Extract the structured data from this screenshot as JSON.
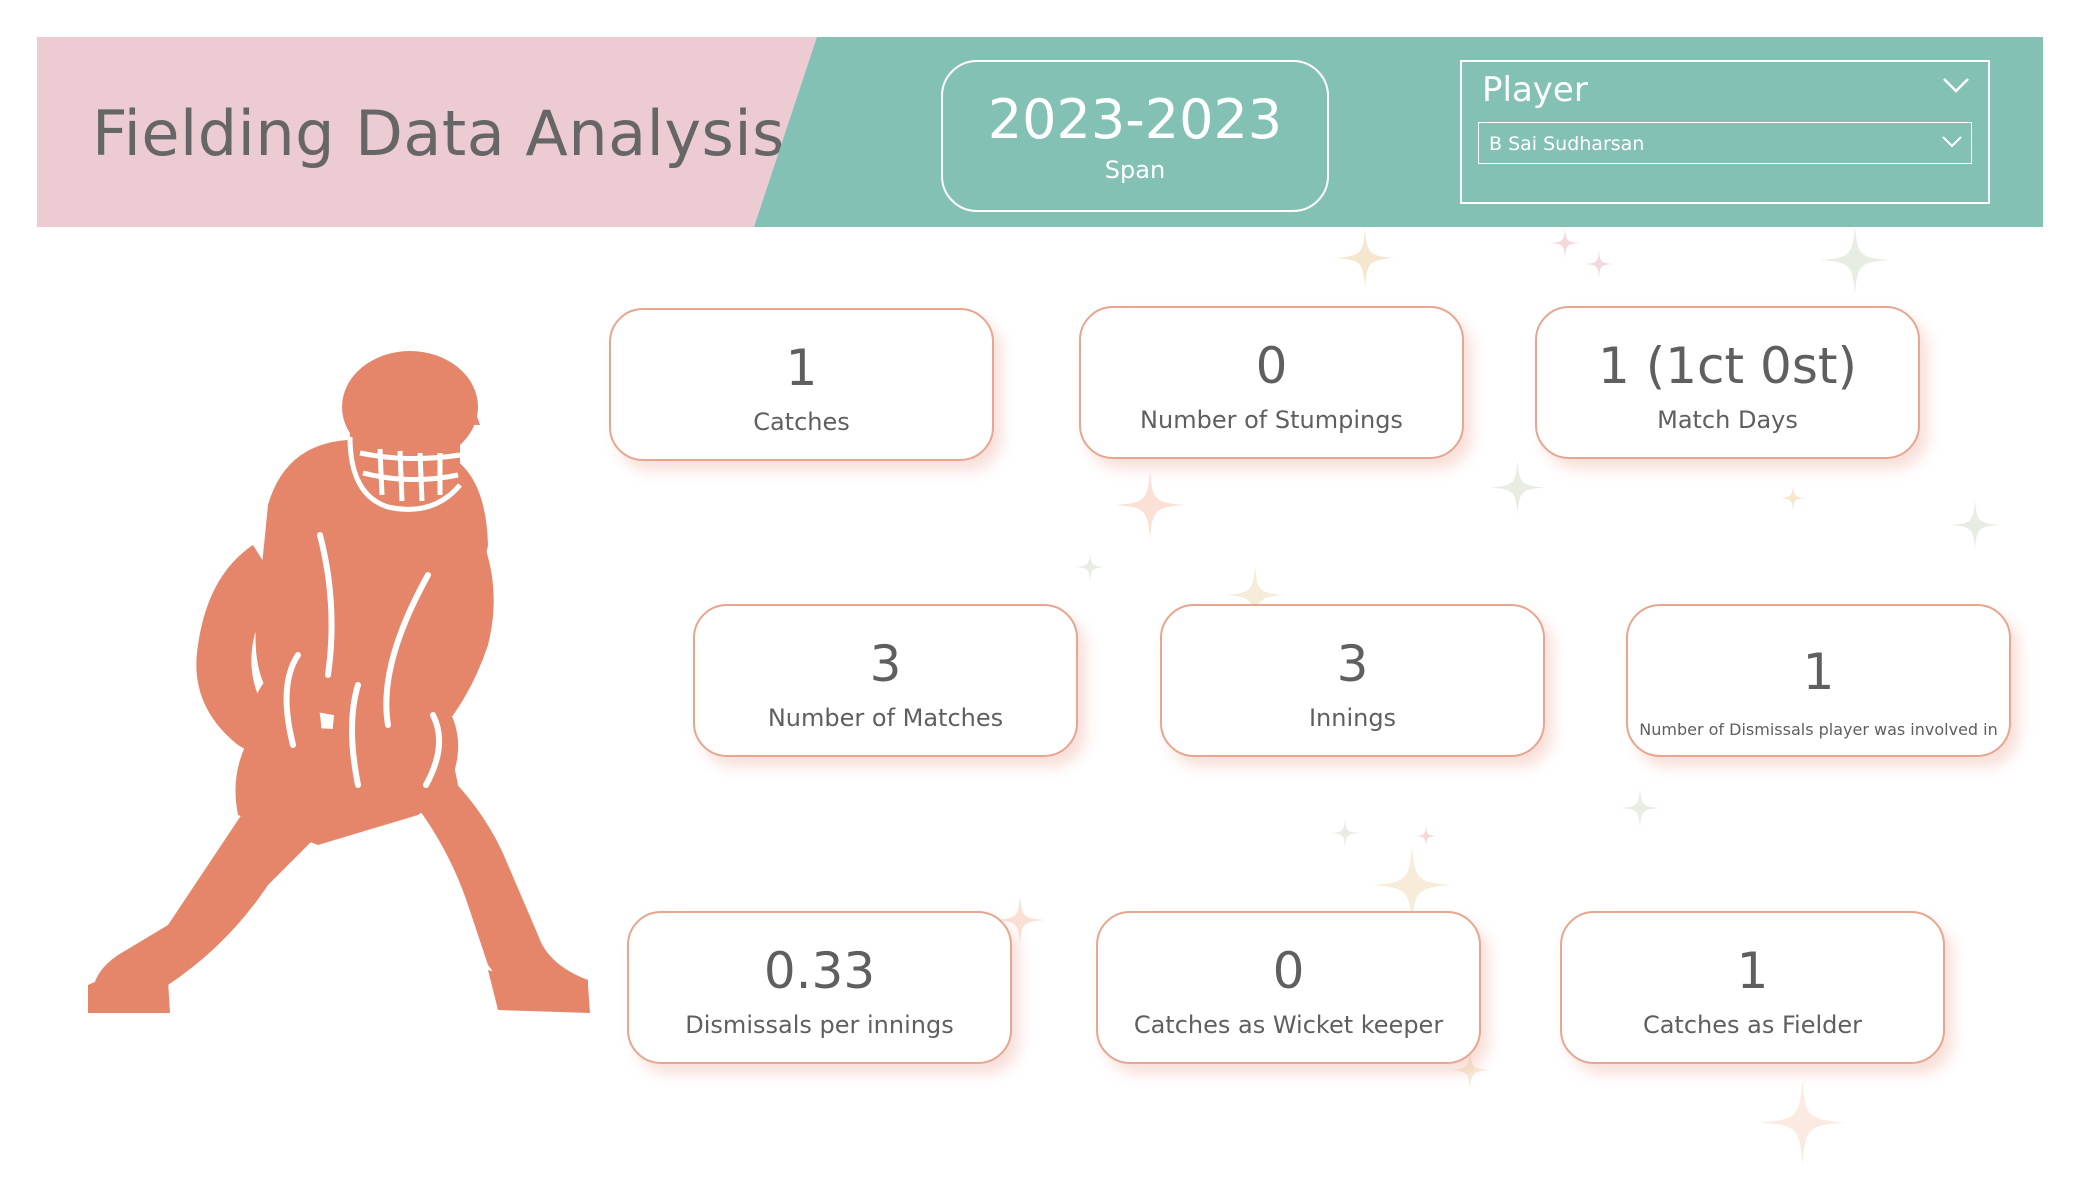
{
  "header": {
    "title": "Fielding Data Analysis",
    "span": {
      "value": "2023-2023",
      "label": "Span"
    },
    "player_slicer": {
      "title": "Player",
      "selected": "B Sai Sudharsan"
    }
  },
  "colors": {
    "teal": "#84c1b5",
    "pink": "#ecccd2",
    "accent": "#e5866b",
    "card_border": "#e8a58f",
    "text": "#5f5f5f"
  },
  "cards": {
    "catches": {
      "value": "1",
      "label": "Catches"
    },
    "stumpings": {
      "value": "0",
      "label": "Number of Stumpings"
    },
    "match_days": {
      "value": "1 (1ct 0st)",
      "label": "Match Days"
    },
    "matches": {
      "value": "3",
      "label": "Number of Matches"
    },
    "innings": {
      "value": "3",
      "label": "Innings"
    },
    "dismissals": {
      "value": "1",
      "label": "Number of Dismissals player was involved in"
    },
    "dismissals_per_innings": {
      "value": "0.33",
      "label": "Dismissals per innings"
    },
    "catches_wk": {
      "value": "0",
      "label": "Catches as Wicket keeper"
    },
    "catches_fielder": {
      "value": "1",
      "label": "Catches as Fielder"
    }
  },
  "illustration": {
    "icon": "wicket-keeper-silhouette-icon"
  }
}
